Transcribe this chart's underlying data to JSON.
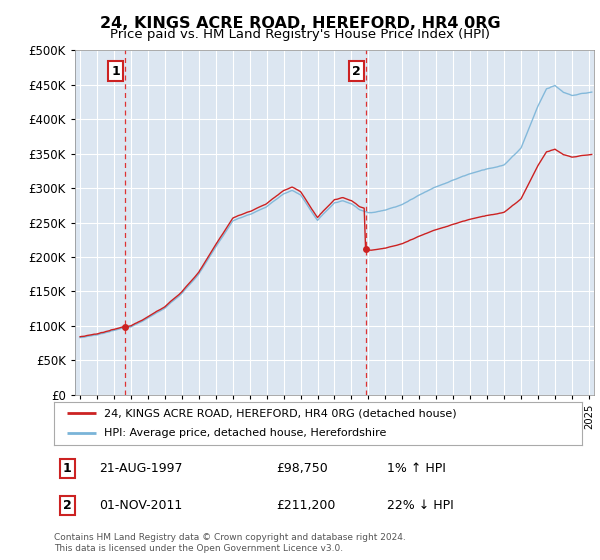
{
  "title": "24, KINGS ACRE ROAD, HEREFORD, HR4 0RG",
  "subtitle": "Price paid vs. HM Land Registry's House Price Index (HPI)",
  "hpi_label": "HPI: Average price, detached house, Herefordshire",
  "property_label": "24, KINGS ACRE ROAD, HEREFORD, HR4 0RG (detached house)",
  "annotation1": {
    "num": "1",
    "date": "21-AUG-1997",
    "price": "£98,750",
    "hpi": "1% ↑ HPI",
    "x_year": 1997.64,
    "y_val": 98750
  },
  "annotation2": {
    "num": "2",
    "date": "01-NOV-2011",
    "price": "£211,200",
    "hpi": "22% ↓ HPI",
    "x_year": 2011.83,
    "y_val": 211200
  },
  "footer": "Contains HM Land Registry data © Crown copyright and database right 2024.\nThis data is licensed under the Open Government Licence v3.0.",
  "ylim": [
    0,
    500000
  ],
  "yticks": [
    0,
    50000,
    100000,
    150000,
    200000,
    250000,
    300000,
    350000,
    400000,
    450000,
    500000
  ],
  "xlim_start": 1994.7,
  "xlim_end": 2025.3,
  "bg_color": "#dce6f1",
  "hpi_color": "#7ab4d8",
  "property_color": "#cc2222",
  "vline_color": "#dd3333",
  "grid_color": "#ffffff"
}
